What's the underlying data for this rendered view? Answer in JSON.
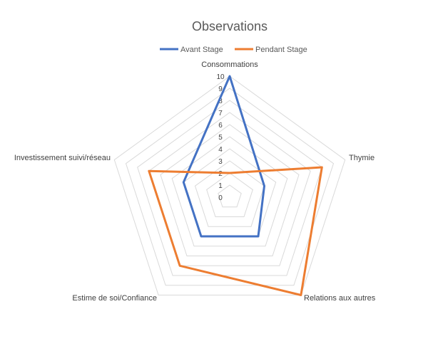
{
  "chart_data": {
    "type": "radar",
    "title": "Observations",
    "legend_position": "top",
    "categories": [
      "Consommations",
      "Thymie",
      "Relations aux autres",
      "Estime de soi/Confiance",
      "Investissement suivi/réseau"
    ],
    "series": [
      {
        "name": "Avant Stage",
        "color": "#4472C4",
        "values": [
          10,
          3,
          4,
          4,
          4
        ]
      },
      {
        "name": "Pendant Stage",
        "color": "#ED7D31",
        "values": [
          2,
          8,
          10,
          7,
          7
        ]
      }
    ],
    "ticks": [
      "0",
      "1",
      "2",
      "3",
      "4",
      "5",
      "6",
      "7",
      "8",
      "9",
      "10"
    ],
    "rmin": 0,
    "rmax": 10,
    "grid": true,
    "grid_color": "#D9D9D9"
  }
}
